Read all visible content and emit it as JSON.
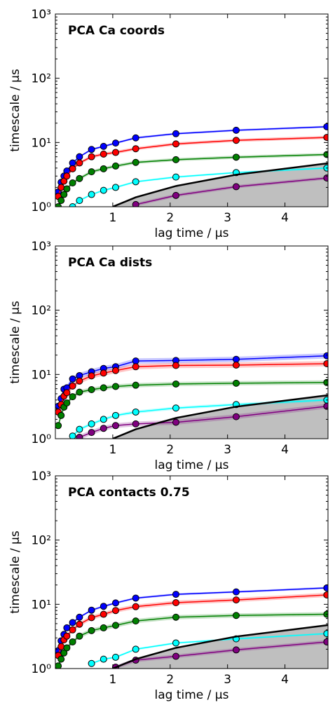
{
  "chart_data": [
    {
      "type": "line",
      "title": "PCA Ca coords",
      "xlabel": "lag time / μs",
      "ylabel": "timescale / μs",
      "xlim": [
        0,
        4.75
      ],
      "ylim": [
        1,
        1000
      ],
      "yscale": "log",
      "xticks": [
        "1",
        "2",
        "3",
        "4"
      ],
      "yticks": [
        "10⁰",
        "10¹",
        "10²",
        "10³"
      ],
      "lag_times": [
        0.05,
        0.1,
        0.15,
        0.2,
        0.3,
        0.42,
        0.63,
        0.84,
        1.05,
        1.4,
        2.1,
        3.15,
        4.73
      ],
      "series": [
        {
          "color": "#0000ff",
          "values": [
            1.7,
            2.4,
            3.0,
            3.6,
            4.8,
            6.0,
            7.8,
            8.7,
            9.8,
            11.8,
            13.7,
            15.5,
            17.6
          ],
          "err": 0.04
        },
        {
          "color": "#ff0000",
          "values": [
            1.45,
            2.0,
            2.5,
            3.0,
            3.9,
            4.8,
            6.0,
            6.6,
            7.0,
            8.0,
            9.5,
            10.8,
            12.0
          ],
          "err": 0.06
        },
        {
          "color": "#008000",
          "values": [
            1.0,
            1.25,
            1.55,
            1.9,
            2.35,
            2.75,
            3.5,
            3.9,
            4.3,
            4.9,
            5.4,
            5.9,
            6.5
          ],
          "err": 0.06
        },
        {
          "color": "#00ffff",
          "values": [
            null,
            null,
            null,
            null,
            1.0,
            1.25,
            1.55,
            1.8,
            2.0,
            2.45,
            2.9,
            3.4,
            4.0
          ],
          "err": 0.04
        },
        {
          "color": "#800080",
          "values": [
            null,
            null,
            null,
            null,
            null,
            null,
            null,
            null,
            null,
            1.08,
            1.5,
            2.05,
            2.8
          ],
          "err": 0.06
        }
      ],
      "boundary": {
        "x": [
          1.0,
          1.4,
          2.1,
          3.15,
          4.75
        ],
        "y": [
          1.0,
          1.4,
          2.1,
          3.15,
          4.75
        ]
      }
    },
    {
      "type": "line",
      "title": "PCA Ca dists",
      "xlabel": "lag time / μs",
      "ylabel": "timescale / μs",
      "xlim": [
        0,
        4.75
      ],
      "ylim": [
        1,
        1000
      ],
      "yscale": "log",
      "xticks": [
        "1",
        "2",
        "3",
        "4"
      ],
      "yticks": [
        "10⁰",
        "10¹",
        "10²",
        "10³"
      ],
      "lag_times": [
        0.05,
        0.1,
        0.15,
        0.2,
        0.3,
        0.42,
        0.63,
        0.84,
        1.05,
        1.4,
        2.1,
        3.15,
        4.73
      ],
      "series": [
        {
          "color": "#0000ff",
          "values": [
            3.2,
            4.2,
            5.9,
            6.2,
            8.5,
            9.6,
            11.0,
            12.4,
            13.2,
            16.2,
            16.5,
            17.2,
            19.5
          ],
          "err": 0.1
        },
        {
          "color": "#ff0000",
          "values": [
            2.6,
            3.4,
            4.6,
            5.2,
            6.6,
            7.9,
            9.5,
            10.5,
            11.5,
            13.2,
            13.8,
            14.0,
            14.7
          ],
          "err": 0.1
        },
        {
          "color": "#008000",
          "values": [
            1.6,
            2.3,
            3.1,
            3.6,
            4.5,
            5.3,
            5.8,
            6.2,
            6.5,
            6.8,
            7.1,
            7.3,
            7.5
          ],
          "err": 0.08
        },
        {
          "color": "#00ffff",
          "values": [
            null,
            null,
            null,
            null,
            1.1,
            1.4,
            1.7,
            2.0,
            2.3,
            2.6,
            3.0,
            3.4,
            4.0
          ],
          "err": 0.06
        },
        {
          "color": "#800080",
          "values": [
            null,
            null,
            null,
            null,
            null,
            1.05,
            1.25,
            1.45,
            1.6,
            1.7,
            1.8,
            2.2,
            3.2
          ],
          "err": 0.09
        }
      ],
      "boundary": {
        "x": [
          1.0,
          1.4,
          2.1,
          3.15,
          4.75
        ],
        "y": [
          1.0,
          1.4,
          2.1,
          3.15,
          4.75
        ]
      }
    },
    {
      "type": "line",
      "title": "PCA contacts 0.75",
      "xlabel": "lag time / μs",
      "ylabel": "timescale / μs",
      "xlim": [
        0,
        4.75
      ],
      "ylim": [
        1,
        1000
      ],
      "yscale": "log",
      "xticks": [
        "1",
        "2",
        "3",
        "4"
      ],
      "yticks": [
        "10⁰",
        "10¹",
        "10²",
        "10³"
      ],
      "lag_times": [
        0.05,
        0.1,
        0.15,
        0.2,
        0.3,
        0.42,
        0.63,
        0.84,
        1.05,
        1.4,
        2.1,
        3.15,
        4.73
      ],
      "series": [
        {
          "color": "#0000ff",
          "values": [
            1.9,
            2.7,
            3.4,
            4.3,
            5.2,
            6.3,
            8.1,
            9.3,
            10.5,
            12.5,
            14.3,
            15.6,
            18.0
          ],
          "err": 0.04
        },
        {
          "color": "#ff0000",
          "values": [
            1.6,
            2.2,
            2.8,
            3.2,
            4.0,
            4.9,
            6.2,
            7.0,
            8.0,
            9.2,
            10.6,
            11.7,
            14.0
          ],
          "err": 0.08
        },
        {
          "color": "#008000",
          "values": [
            1.1,
            1.4,
            1.75,
            2.1,
            2.6,
            3.2,
            3.9,
            4.3,
            4.7,
            5.5,
            6.3,
            6.7,
            7.0
          ],
          "err": 0.08
        },
        {
          "color": "#00ffff",
          "values": [
            null,
            null,
            null,
            null,
            null,
            null,
            1.2,
            1.4,
            1.5,
            2.0,
            2.5,
            2.9,
            3.5
          ],
          "err": 0.04
        },
        {
          "color": "#800080",
          "values": [
            null,
            null,
            null,
            null,
            null,
            null,
            null,
            null,
            1.05,
            1.35,
            1.55,
            1.95,
            2.6
          ],
          "err": 0.07
        }
      ],
      "boundary": {
        "x": [
          1.0,
          1.4,
          2.1,
          3.15,
          4.75
        ],
        "y": [
          1.0,
          1.4,
          2.1,
          3.15,
          4.75
        ]
      }
    }
  ]
}
